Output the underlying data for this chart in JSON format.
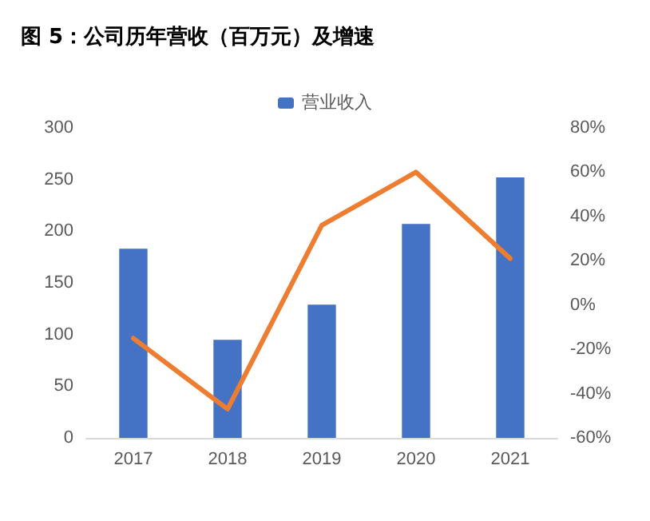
{
  "chart_data": {
    "type": "bar",
    "title": "图 5：公司历年营收（百万元）及增速",
    "categories": [
      "2017",
      "2018",
      "2019",
      "2020",
      "2021"
    ],
    "series": [
      {
        "name": "营业收入",
        "color": "#4472c4",
        "values": [
          183,
          95,
          129,
          207,
          252
        ]
      },
      {
        "type": "line",
        "axis": "y2",
        "color": "#ed7d31",
        "values": [
          -15,
          -47,
          36,
          60,
          21
        ]
      }
    ],
    "ylim": [
      0,
      300
    ],
    "yticks": [
      0,
      50,
      100,
      150,
      200,
      250,
      300
    ],
    "y2lim": [
      -60,
      80
    ],
    "y2ticks": [
      {
        "value": -60,
        "label": "-60%"
      },
      {
        "value": -40,
        "label": "-40%"
      },
      {
        "value": -20,
        "label": "-20%"
      },
      {
        "value": 0,
        "label": "0%"
      },
      {
        "value": 20,
        "label": "20%"
      },
      {
        "value": 40,
        "label": "40%"
      },
      {
        "value": 60,
        "label": "60%"
      },
      {
        "value": 80,
        "label": "80%"
      }
    ],
    "grid": false,
    "legend": "top",
    "marker": "none"
  }
}
